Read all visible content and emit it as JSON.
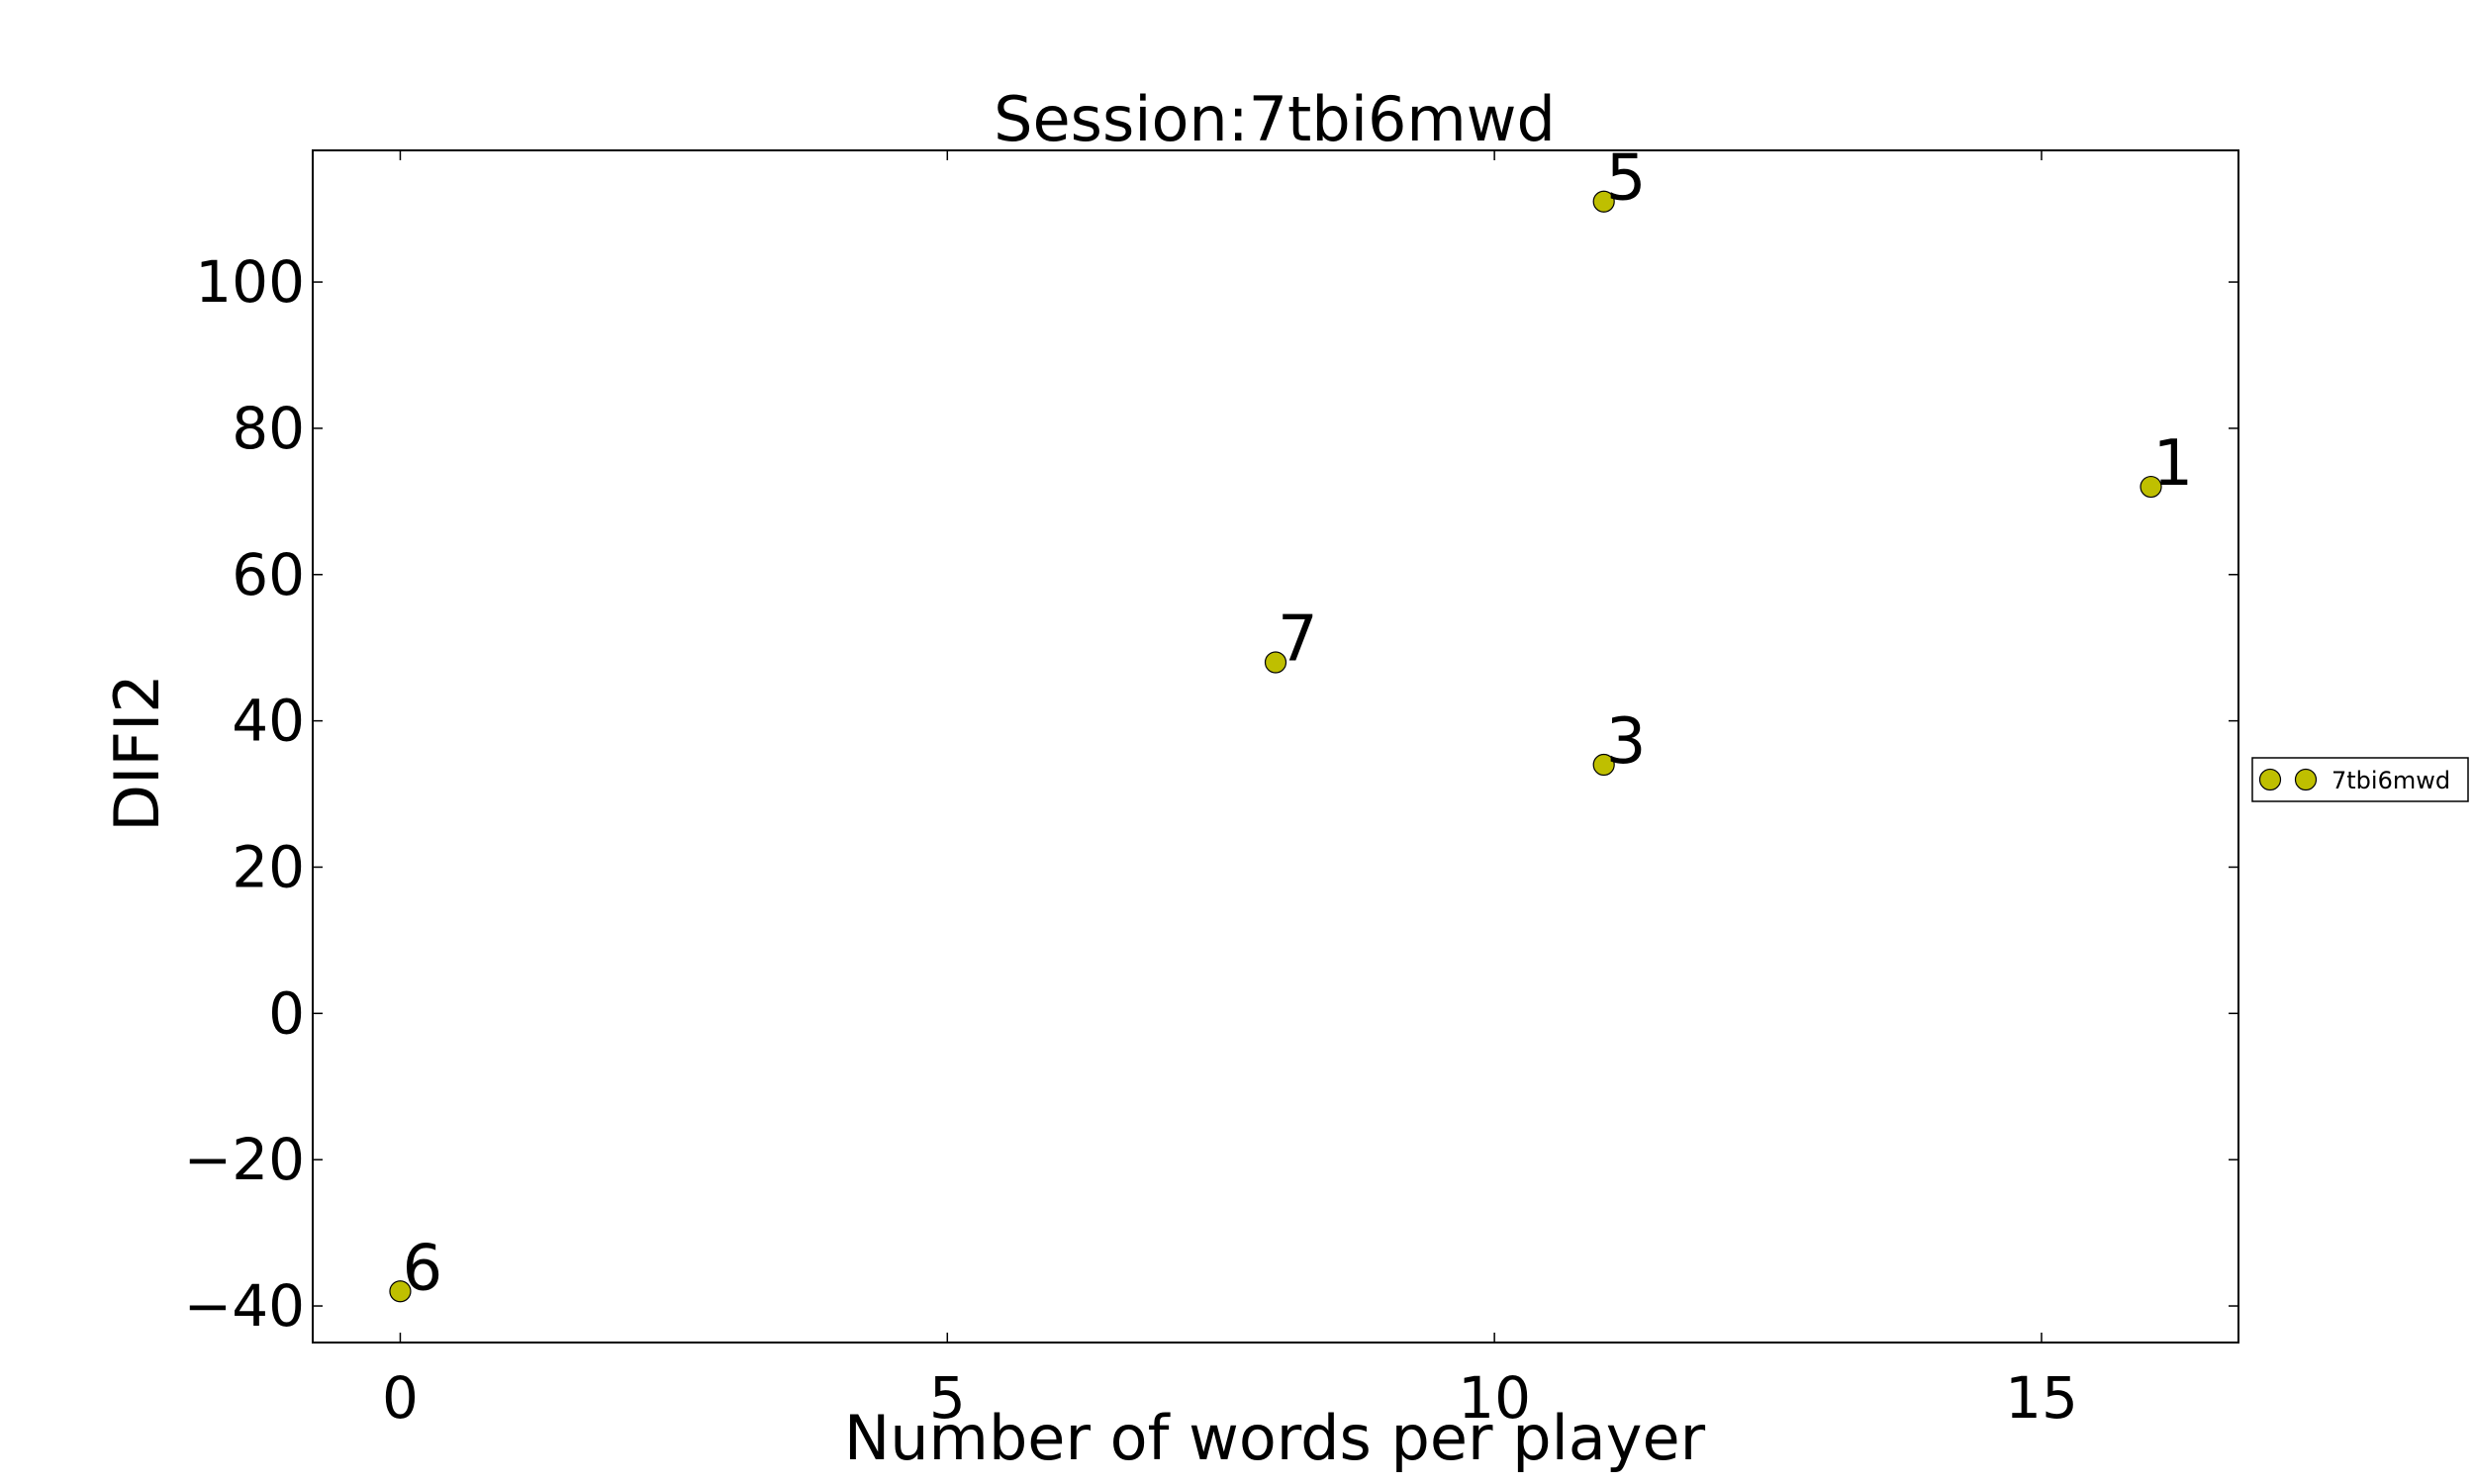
{
  "chart_data": {
    "type": "scatter",
    "title": "Session:7tbi6mwd",
    "xlabel": "Number of words per player",
    "ylabel": "DIFI2",
    "xlim": [
      -0.8,
      16.8
    ],
    "ylim": [
      -45,
      118
    ],
    "xticks": [
      0,
      5,
      10,
      15
    ],
    "yticks": [
      -40,
      -20,
      0,
      20,
      40,
      60,
      80,
      100
    ],
    "grid": false,
    "legend_position": "right",
    "series": [
      {
        "name": "7tbi6mwd",
        "color": "#bfbf00",
        "points": [
          {
            "x": 16,
            "y": 72,
            "label": "1"
          },
          {
            "x": 11,
            "y": 34,
            "label": "3"
          },
          {
            "x": 11,
            "y": 111,
            "label": "5"
          },
          {
            "x": 0,
            "y": -38,
            "label": "6"
          },
          {
            "x": 8,
            "y": 48,
            "label": "7"
          }
        ]
      }
    ]
  }
}
